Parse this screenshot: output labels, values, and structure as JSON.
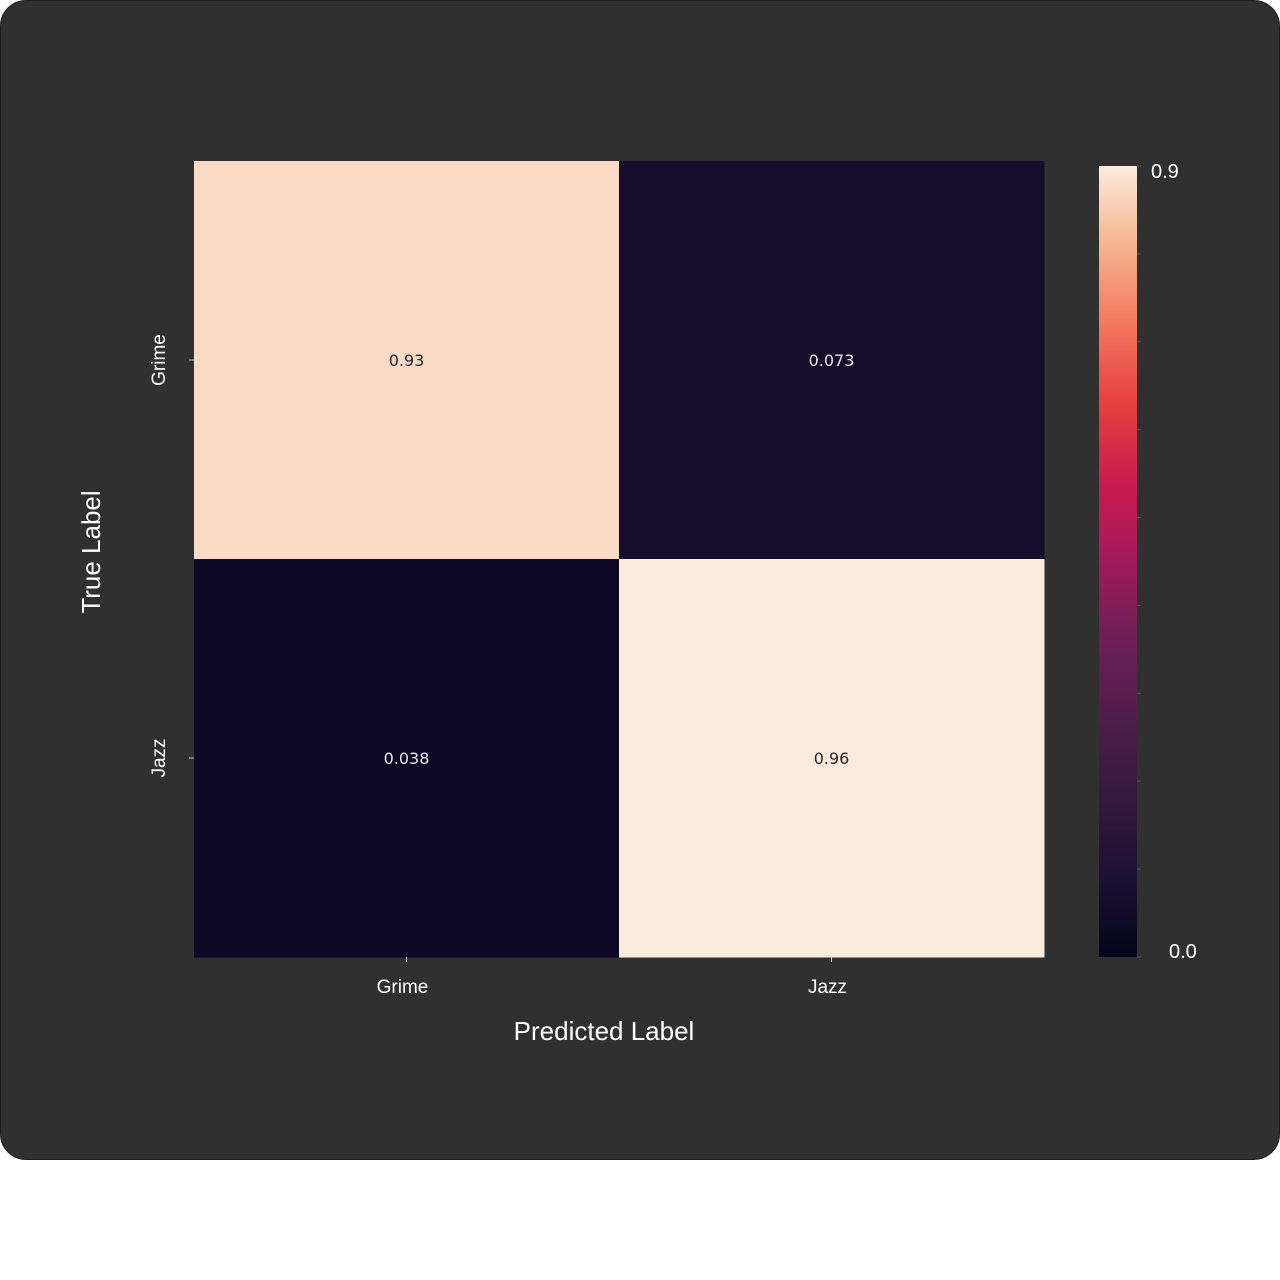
{
  "chart_data": {
    "type": "heatmap",
    "title": "",
    "xlabel": "Predicted Label",
    "ylabel": "True Label",
    "x_categories": [
      "Grime",
      "Jazz"
    ],
    "y_categories": [
      "Grime",
      "Jazz"
    ],
    "values": [
      [
        0.93,
        0.073
      ],
      [
        0.038,
        0.96
      ]
    ],
    "cell_labels": [
      [
        "0.93",
        "0.073"
      ],
      [
        "0.038",
        "0.96"
      ]
    ],
    "colorbar": {
      "range": [
        0.0,
        0.96
      ],
      "tick_labels": [
        "0.9",
        "0.0"
      ],
      "tick_values": [
        0.9,
        0.0
      ],
      "colormap": "rocket"
    },
    "colors": {
      "background": "#303030",
      "text": "#ffffff"
    }
  }
}
